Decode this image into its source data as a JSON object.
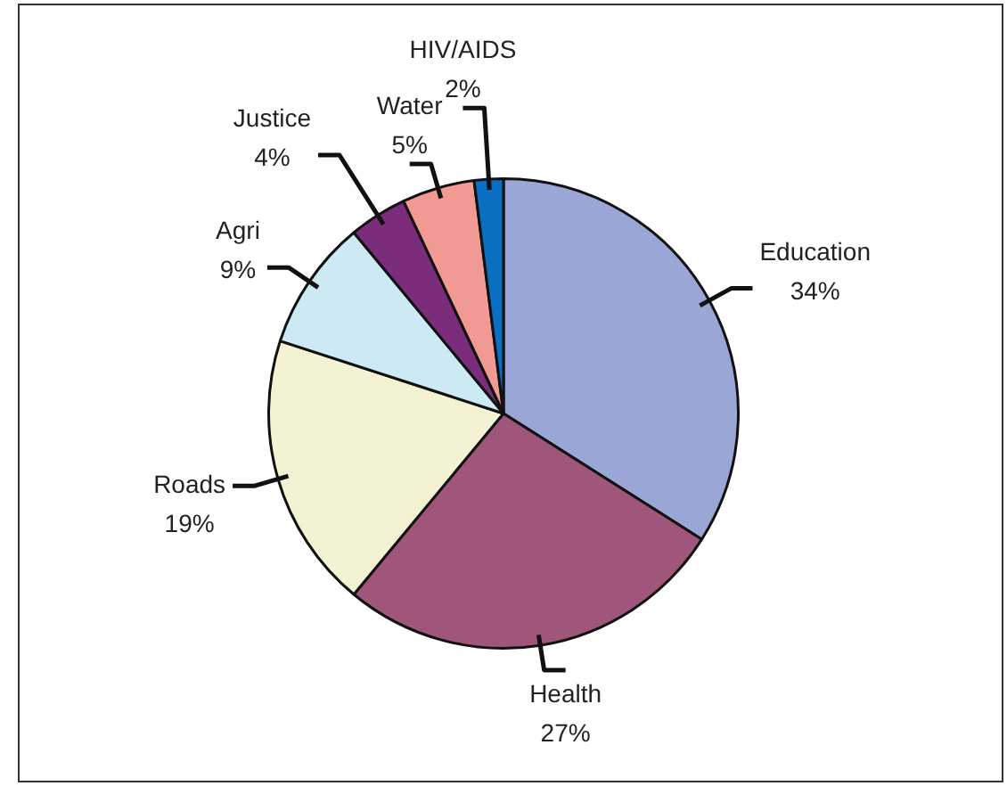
{
  "chart_data": {
    "type": "pie",
    "categories": [
      "Education",
      "Health",
      "Roads",
      "Agri",
      "Justice",
      "Water",
      "HIV/AIDS"
    ],
    "values": [
      34,
      27,
      19,
      9,
      4,
      5,
      2
    ],
    "value_labels": [
      "34%",
      "27%",
      "19%",
      "9%",
      "4%",
      "5%",
      "2%"
    ],
    "colors": [
      "#9aa6d6",
      "#a0567a",
      "#f3f2d2",
      "#cde9f4",
      "#7b2d7b",
      "#f19a94",
      "#0a6fc0"
    ],
    "legend": false
  }
}
